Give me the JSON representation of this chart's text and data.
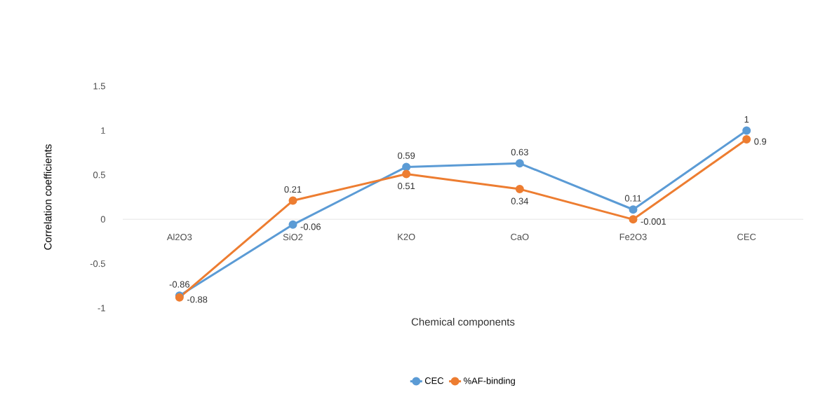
{
  "chart_data": {
    "type": "line",
    "xlabel": "Chemical components",
    "ylabel": "Correlation coefficients",
    "categories": [
      "Al2O3",
      "SiO2",
      "K2O",
      "CaO",
      "Fe2O3",
      "CEC"
    ],
    "series": [
      {
        "name": "CEC",
        "color": "#5b9bd5",
        "values": [
          -0.86,
          -0.06,
          0.59,
          0.63,
          0.11,
          1
        ]
      },
      {
        "name": "%AF-binding",
        "color": "#ed7d31",
        "values": [
          -0.88,
          0.21,
          0.51,
          0.34,
          -0.001,
          0.9
        ]
      }
    ],
    "ylim": [
      -1,
      1.5
    ],
    "yticks": [
      -1,
      -0.5,
      0,
      0.5,
      1,
      1.5
    ],
    "data_labels": true,
    "legend": "bottom",
    "marker": "circle",
    "line_style": "solid"
  }
}
